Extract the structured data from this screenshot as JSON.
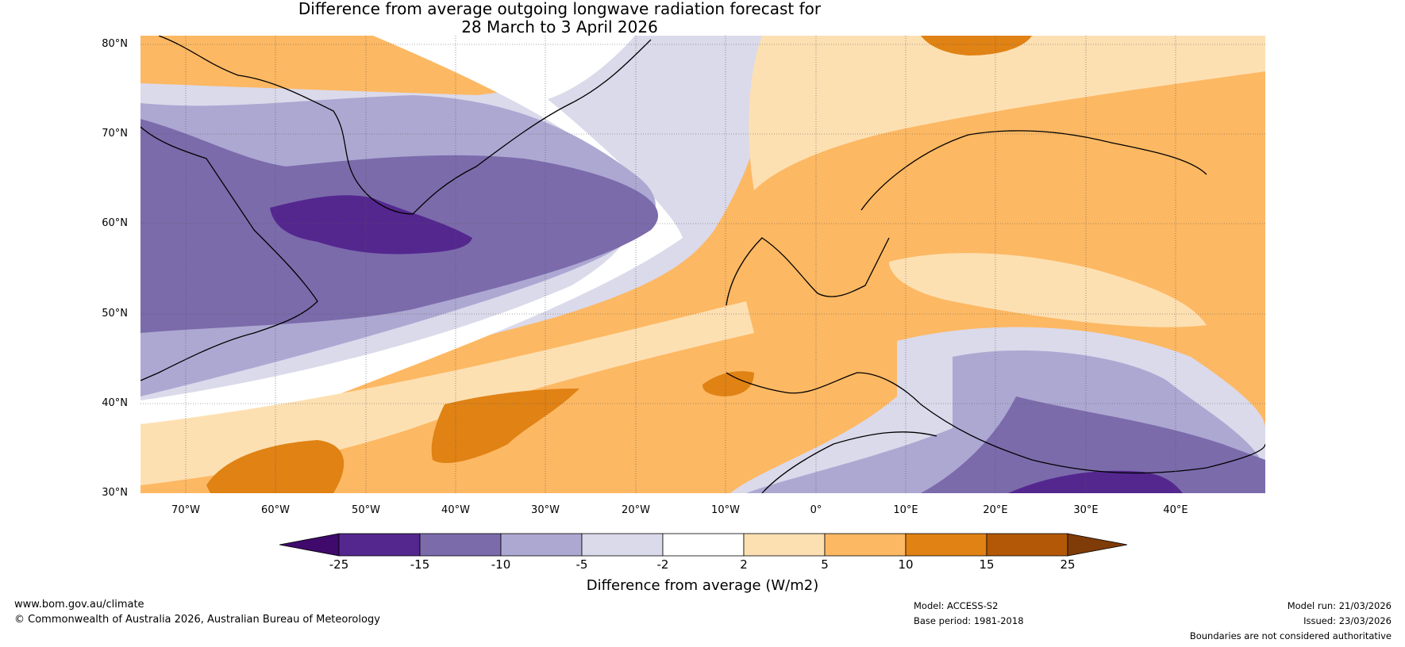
{
  "title": {
    "line1": "Difference from average outgoing longwave radiation forecast for",
    "line2": "28 March to 3 April 2026"
  },
  "map": {
    "lat_labels": [
      "80°N",
      "70°N",
      "60°N",
      "50°N",
      "40°N",
      "30°N"
    ],
    "lon_labels": [
      "70°W",
      "60°W",
      "50°W",
      "40°W",
      "30°W",
      "20°W",
      "10°W",
      "0°",
      "10°E",
      "20°E",
      "30°E",
      "40°E"
    ]
  },
  "colorbar": {
    "ticks": [
      "-25",
      "-15",
      "-10",
      "-5",
      "-2",
      "2",
      "5",
      "10",
      "15",
      "25"
    ],
    "colors": [
      "#3f0a6b",
      "#54278f",
      "#7b6bab",
      "#ada8d2",
      "#dadaeb",
      "#ffffff",
      "#fde0b2",
      "#fdb863",
      "#e08214",
      "#b35806",
      "#7f3b08"
    ],
    "label": "Difference from average (W/m2)"
  },
  "footer": {
    "website": "www.bom.gov.au/climate",
    "copyright": "© Commonwealth of Australia 2026, Australian Bureau of Meteorology",
    "model": "Model: ACCESS-S2",
    "base_period": "Base period: 1981-2018",
    "model_run": "Model run: 21/03/2026",
    "issued": "Issued: 23/03/2026",
    "disclaimer": "Boundaries are not considered authoritative"
  }
}
